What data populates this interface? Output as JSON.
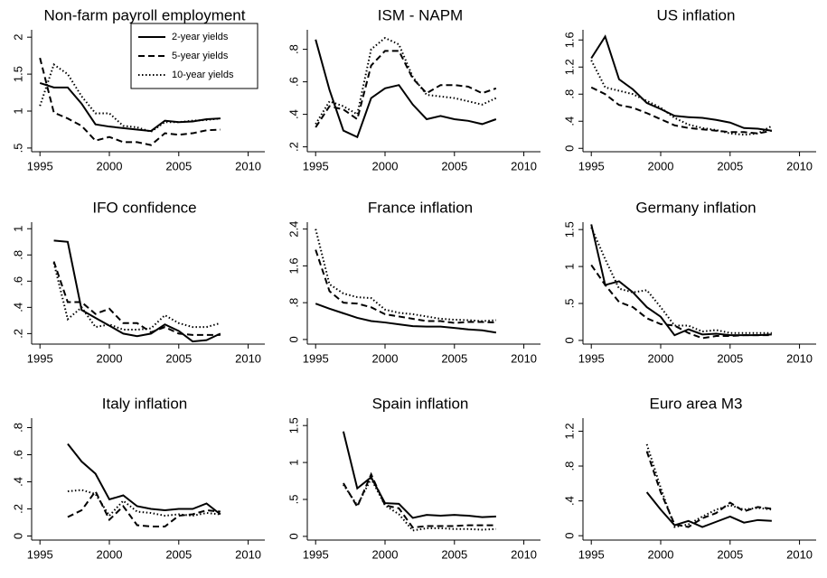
{
  "chart_data": [
    {
      "type": "line",
      "title": "Non-farm payroll employment",
      "legend": "upper right",
      "x": [
        1995,
        1996,
        1997,
        1998,
        1999,
        2000,
        2001,
        2002,
        2003,
        2004,
        2005,
        2006,
        2007,
        2008
      ],
      "xlim": [
        1994.4,
        2011.2
      ],
      "xticks": [
        1995,
        2000,
        2005,
        2010
      ],
      "ylim": [
        0.45,
        2.1
      ],
      "yticks": [
        {
          "value": 0.5,
          "label": ".5"
        },
        1,
        1.5,
        2
      ],
      "series": [
        {
          "name": "2-year yields",
          "color": "#000000",
          "dash": "solid",
          "values": [
            1.38,
            1.32,
            1.32,
            1.1,
            0.82,
            0.79,
            0.77,
            0.75,
            0.73,
            0.87,
            0.85,
            0.86,
            0.89,
            0.9
          ]
        },
        {
          "name": "5-year yields",
          "color": "#000000",
          "dash": "dashed",
          "values": [
            1.72,
            0.98,
            0.9,
            0.8,
            0.6,
            0.65,
            0.58,
            0.58,
            0.54,
            0.7,
            0.68,
            0.7,
            0.74,
            0.75
          ]
        },
        {
          "name": "10-year yields",
          "color": "#000000",
          "dash": "dotted",
          "values": [
            1.07,
            1.63,
            1.5,
            1.2,
            0.97,
            0.97,
            0.8,
            0.78,
            0.72,
            0.85,
            0.85,
            0.87,
            0.88,
            0.9
          ]
        }
      ]
    },
    {
      "type": "line",
      "title": "ISM - NAPM",
      "x": [
        1995,
        1996,
        1997,
        1998,
        1999,
        2000,
        2001,
        2002,
        2003,
        2004,
        2005,
        2006,
        2007,
        2008
      ],
      "xlim": [
        1994.4,
        2011.2
      ],
      "xticks": [
        1995,
        2000,
        2005,
        2010
      ],
      "ylim": [
        0.17,
        0.92
      ],
      "yticks": [
        {
          "value": 0.2,
          "label": ".2"
        },
        {
          "value": 0.4,
          "label": ".4"
        },
        {
          "value": 0.6,
          "label": ".6"
        },
        {
          "value": 0.8,
          "label": ".8"
        }
      ],
      "series": [
        {
          "color": "#000000",
          "dash": "solid",
          "values": [
            0.86,
            0.55,
            0.3,
            0.26,
            0.5,
            0.56,
            0.58,
            0.46,
            0.37,
            0.39,
            0.37,
            0.36,
            0.34,
            0.37
          ]
        },
        {
          "color": "#000000",
          "dash": "dashed",
          "values": [
            0.32,
            0.45,
            0.43,
            0.37,
            0.7,
            0.79,
            0.79,
            0.62,
            0.53,
            0.58,
            0.58,
            0.57,
            0.53,
            0.56
          ]
        },
        {
          "color": "#000000",
          "dash": "dotted",
          "values": [
            0.34,
            0.48,
            0.45,
            0.4,
            0.8,
            0.87,
            0.83,
            0.63,
            0.52,
            0.51,
            0.5,
            0.48,
            0.46,
            0.5
          ]
        }
      ]
    },
    {
      "type": "line",
      "title": "US inflation",
      "x": [
        1995,
        1996,
        1997,
        1998,
        1999,
        2000,
        2001,
        2002,
        2003,
        2004,
        2005,
        2006,
        2007,
        2008
      ],
      "xlim": [
        1994.4,
        2011.2
      ],
      "xticks": [
        1995,
        2000,
        2005,
        2010
      ],
      "ylim": [
        -0.05,
        1.75
      ],
      "yticks": [
        0,
        {
          "value": 0.4,
          "label": ".4"
        },
        {
          "value": 0.8,
          "label": ".8"
        },
        1.2,
        1.6
      ],
      "series": [
        {
          "color": "#000000",
          "dash": "solid",
          "values": [
            1.33,
            1.65,
            1.02,
            0.87,
            0.67,
            0.58,
            0.48,
            0.46,
            0.45,
            0.42,
            0.38,
            0.3,
            0.29,
            0.26
          ]
        },
        {
          "color": "#000000",
          "dash": "dashed",
          "values": [
            0.9,
            0.8,
            0.64,
            0.6,
            0.52,
            0.43,
            0.34,
            0.3,
            0.28,
            0.26,
            0.24,
            0.24,
            0.22,
            0.26
          ]
        },
        {
          "color": "#000000",
          "dash": "dotted",
          "values": [
            1.3,
            0.9,
            0.85,
            0.8,
            0.7,
            0.6,
            0.45,
            0.35,
            0.3,
            0.27,
            0.22,
            0.2,
            0.22,
            0.33
          ]
        }
      ]
    },
    {
      "type": "line",
      "title": "IFO confidence",
      "x": [
        1996,
        1997,
        1998,
        1999,
        2000,
        2001,
        2002,
        2003,
        2004,
        2005,
        2006,
        2007,
        2008
      ],
      "xlim": [
        1994.4,
        2011.2
      ],
      "xticks": [
        1995,
        2000,
        2005,
        2010
      ],
      "ylim": [
        0.12,
        1.05
      ],
      "yticks": [
        {
          "value": 0.2,
          "label": ".2"
        },
        {
          "value": 0.4,
          "label": ".4"
        },
        {
          "value": 0.6,
          "label": ".6"
        },
        {
          "value": 0.8,
          "label": ".8"
        },
        1
      ],
      "series": [
        {
          "color": "#000000",
          "dash": "solid",
          "values": [
            0.91,
            0.9,
            0.38,
            0.32,
            0.26,
            0.2,
            0.18,
            0.2,
            0.27,
            0.22,
            0.14,
            0.15,
            0.2
          ]
        },
        {
          "color": "#000000",
          "dash": "dashed",
          "values": [
            0.75,
            0.44,
            0.44,
            0.35,
            0.39,
            0.28,
            0.28,
            0.21,
            0.25,
            0.2,
            0.19,
            0.19,
            0.19
          ]
        },
        {
          "color": "#000000",
          "dash": "dotted",
          "values": [
            0.74,
            0.31,
            0.4,
            0.25,
            0.27,
            0.23,
            0.23,
            0.24,
            0.34,
            0.28,
            0.25,
            0.25,
            0.28
          ]
        }
      ]
    },
    {
      "type": "line",
      "title": "France inflation",
      "x": [
        1995,
        1996,
        1997,
        1998,
        1999,
        2000,
        2001,
        2002,
        2003,
        2004,
        2005,
        2006,
        2007,
        2008
      ],
      "xlim": [
        1994.4,
        2011.2
      ],
      "xticks": [
        1995,
        2000,
        2005,
        2010
      ],
      "ylim": [
        -0.1,
        2.55
      ],
      "yticks": [
        0,
        {
          "value": 0.8,
          "label": ".8"
        },
        1.6,
        2.4
      ],
      "series": [
        {
          "color": "#000000",
          "dash": "solid",
          "values": [
            0.78,
            0.67,
            0.57,
            0.47,
            0.4,
            0.37,
            0.33,
            0.29,
            0.28,
            0.28,
            0.25,
            0.22,
            0.2,
            0.15
          ]
        },
        {
          "color": "#000000",
          "dash": "dashed",
          "values": [
            1.95,
            1.05,
            0.8,
            0.78,
            0.7,
            0.55,
            0.5,
            0.45,
            0.4,
            0.4,
            0.36,
            0.38,
            0.38,
            0.37
          ]
        },
        {
          "color": "#000000",
          "dash": "dotted",
          "values": [
            2.4,
            1.2,
            1.0,
            0.92,
            0.9,
            0.65,
            0.58,
            0.55,
            0.5,
            0.45,
            0.43,
            0.42,
            0.4,
            0.42
          ]
        }
      ]
    },
    {
      "type": "line",
      "title": "Germany inflation",
      "x": [
        1995,
        1996,
        1997,
        1998,
        1999,
        2000,
        2001,
        2002,
        2003,
        2004,
        2005,
        2006,
        2007,
        2008
      ],
      "xlim": [
        1994.4,
        2011.2
      ],
      "xticks": [
        1995,
        2000,
        2005,
        2010
      ],
      "ylim": [
        -0.05,
        1.6
      ],
      "yticks": [
        0,
        {
          "value": 0.5,
          "label": ".5"
        },
        1,
        1.5
      ],
      "series": [
        {
          "color": "#000000",
          "dash": "solid",
          "values": [
            1.57,
            0.75,
            0.8,
            0.65,
            0.45,
            0.32,
            0.07,
            0.15,
            0.08,
            0.09,
            0.07,
            0.07,
            0.07,
            0.08
          ]
        },
        {
          "color": "#000000",
          "dash": "dashed",
          "values": [
            1.02,
            0.75,
            0.52,
            0.45,
            0.3,
            0.22,
            0.2,
            0.1,
            0.03,
            0.06,
            0.06,
            0.07,
            0.07,
            0.07
          ]
        },
        {
          "color": "#000000",
          "dash": "dotted",
          "values": [
            1.53,
            1.1,
            0.7,
            0.65,
            0.68,
            0.45,
            0.2,
            0.2,
            0.12,
            0.14,
            0.1,
            0.1,
            0.1,
            0.1
          ]
        }
      ]
    },
    {
      "type": "line",
      "title": "Italy inflation",
      "x": [
        1997,
        1998,
        1999,
        2000,
        2001,
        2002,
        2003,
        2004,
        2005,
        2006,
        2007,
        2008
      ],
      "xlim": [
        1994.4,
        2011.2
      ],
      "xticks": [
        1995,
        2000,
        2005,
        2010
      ],
      "ylim": [
        -0.03,
        0.87
      ],
      "yticks": [
        0,
        {
          "value": 0.2,
          "label": ".2"
        },
        {
          "value": 0.4,
          "label": ".4"
        },
        {
          "value": 0.6,
          "label": ".6"
        },
        {
          "value": 0.8,
          "label": ".8"
        }
      ],
      "series": [
        {
          "color": "#000000",
          "dash": "solid",
          "values": [
            0.68,
            0.55,
            0.46,
            0.27,
            0.3,
            0.22,
            0.2,
            0.19,
            0.2,
            0.2,
            0.24,
            0.16
          ]
        },
        {
          "color": "#000000",
          "dash": "dashed",
          "values": [
            0.14,
            0.19,
            0.33,
            0.12,
            0.22,
            0.08,
            0.07,
            0.07,
            0.15,
            0.16,
            0.19,
            0.18
          ]
        },
        {
          "color": "#000000",
          "dash": "dotted",
          "values": [
            0.33,
            0.34,
            0.31,
            0.15,
            0.26,
            0.18,
            0.17,
            0.15,
            0.16,
            0.15,
            0.17,
            0.16
          ]
        }
      ]
    },
    {
      "type": "line",
      "title": "Spain inflation",
      "x": [
        1997,
        1998,
        1999,
        2000,
        2001,
        2002,
        2003,
        2004,
        2005,
        2006,
        2007,
        2008
      ],
      "xlim": [
        1994.4,
        2011.2
      ],
      "xticks": [
        1995,
        2000,
        2005,
        2010
      ],
      "ylim": [
        -0.05,
        1.6
      ],
      "yticks": [
        0,
        {
          "value": 0.5,
          "label": ".5"
        },
        1,
        1.5
      ],
      "series": [
        {
          "color": "#000000",
          "dash": "solid",
          "values": [
            1.42,
            0.65,
            0.8,
            0.45,
            0.44,
            0.25,
            0.29,
            0.28,
            0.29,
            0.28,
            0.26,
            0.27
          ]
        },
        {
          "color": "#000000",
          "dash": "dashed",
          "values": [
            0.72,
            0.4,
            0.84,
            0.42,
            0.38,
            0.12,
            0.14,
            0.14,
            0.14,
            0.15,
            0.15,
            0.15
          ]
        },
        {
          "color": "#000000",
          "dash": "dotted",
          "values": [
            0.7,
            0.42,
            0.78,
            0.42,
            0.3,
            0.08,
            0.11,
            0.11,
            0.1,
            0.1,
            0.09,
            0.1
          ]
        }
      ]
    },
    {
      "type": "line",
      "title": "Euro area M3",
      "x": [
        1999,
        2000,
        2001,
        2002,
        2003,
        2004,
        2005,
        2006,
        2007,
        2008
      ],
      "xlim": [
        1994.4,
        2011.2
      ],
      "xticks": [
        1995,
        2000,
        2005,
        2010
      ],
      "ylim": [
        -0.05,
        1.35
      ],
      "yticks": [
        0,
        {
          "value": 0.4,
          "label": ".4"
        },
        {
          "value": 0.8,
          "label": ".8"
        },
        1.2
      ],
      "series": [
        {
          "color": "#000000",
          "dash": "solid",
          "values": [
            0.5,
            0.3,
            0.12,
            0.17,
            0.1,
            0.16,
            0.22,
            0.15,
            0.18,
            0.17
          ]
        },
        {
          "color": "#000000",
          "dash": "dashed",
          "values": [
            0.97,
            0.5,
            0.13,
            0.1,
            0.2,
            0.26,
            0.38,
            0.28,
            0.33,
            0.31
          ]
        },
        {
          "color": "#000000",
          "dash": "dotted",
          "values": [
            1.05,
            0.55,
            0.1,
            0.13,
            0.22,
            0.3,
            0.35,
            0.3,
            0.32,
            0.3
          ]
        }
      ]
    }
  ]
}
